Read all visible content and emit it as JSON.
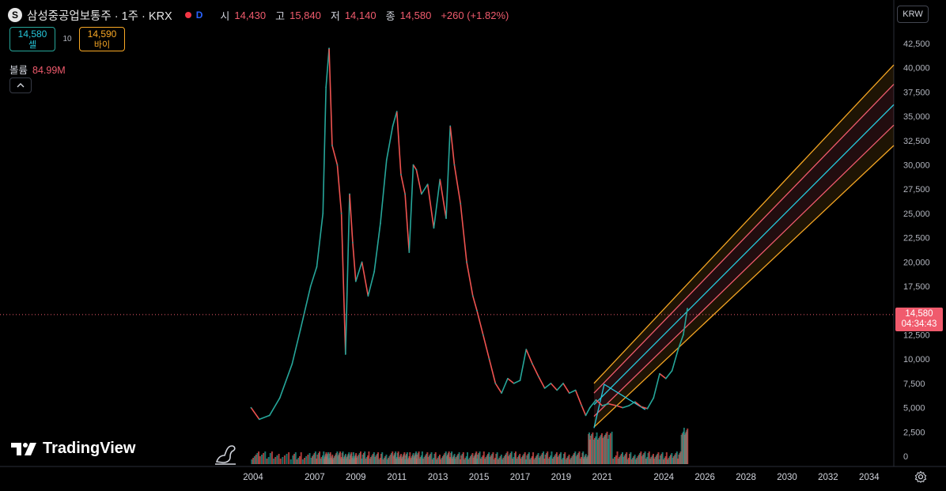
{
  "header": {
    "logo_letter": "S",
    "title": "삼성중공업보통주 · 1주 · KRX",
    "interval_badge": "D",
    "open_label": "시",
    "open_value": "14,430",
    "high_label": "고",
    "high_value": "15,840",
    "low_label": "저",
    "low_value": "14,140",
    "close_label": "종",
    "close_value": "14,580",
    "change": "+260 (+1.82%)"
  },
  "trade": {
    "sell_price": "14,580",
    "sell_label": "셀",
    "spread": "10",
    "buy_price": "14,590",
    "buy_label": "바이"
  },
  "volume": {
    "label": "볼륨",
    "value": "84.99M"
  },
  "collapse_icon": "chevron-up-icon",
  "currency": "KRW",
  "last_price": {
    "value": "14,580",
    "countdown": "04:34:43"
  },
  "watermark": "TradingView",
  "colors": {
    "up": "#26a69a",
    "down": "#ef5350",
    "channel_outer": "#f5a623",
    "channel_mid": "#f05b6d",
    "channel_center": "#26c6da"
  },
  "chart_data": {
    "type": "line",
    "y_ticks": [
      "42,500",
      "40,000",
      "37,500",
      "35,000",
      "32,500",
      "30,000",
      "27,500",
      "25,000",
      "22,500",
      "20,000",
      "17,500",
      "15,000",
      "12,500",
      "10,000",
      "7,500",
      "5,000",
      "2,500",
      "0"
    ],
    "x_ticks": [
      "2004",
      "2007",
      "2009",
      "2011",
      "2013",
      "2015",
      "2017",
      "2019",
      "2021",
      "2024",
      "2026",
      "2028",
      "2030",
      "2032",
      "2034"
    ],
    "ylim": [
      0,
      42500
    ],
    "xlim": [
      2003.5,
      2035.2
    ],
    "series": [
      {
        "x": [
          2003.9,
          2004.3,
          2004.8,
          2005.3,
          2005.9,
          2006.3,
          2006.8,
          2007.1,
          2007.4,
          2007.55,
          2007.7,
          2007.85,
          2008.1,
          2008.3,
          2008.5,
          2008.7,
          2008.85,
          2009.0,
          2009.3,
          2009.6,
          2009.9,
          2010.2,
          2010.5,
          2010.8,
          2011.0,
          2011.2,
          2011.4,
          2011.6,
          2011.8,
          2011.95,
          2012.2,
          2012.5,
          2012.8,
          2013.1,
          2013.4,
          2013.6,
          2013.8,
          2014.1,
          2014.4,
          2014.7,
          2014.9,
          2015.2,
          2015.5,
          2015.8,
          2016.1,
          2016.4,
          2016.7,
          2017.0,
          2017.3,
          2017.6,
          2017.9,
          2018.2,
          2018.5,
          2018.8,
          2019.1,
          2019.4,
          2019.7,
          2020.0,
          2020.2,
          2020.4,
          2020.7,
          2021.0,
          2021.3,
          2021.7,
          2022.0,
          2022.3,
          2022.6,
          2022.9,
          2023.2,
          2023.5,
          2023.8,
          2024.1,
          2024.4,
          2024.7,
          2024.95,
          2025.15
        ],
        "y": [
          5000,
          3800,
          4200,
          6000,
          9500,
          13000,
          17500,
          19500,
          25000,
          38000,
          42000,
          32000,
          30000,
          25000,
          10500,
          27000,
          22000,
          18000,
          20000,
          16500,
          19000,
          24000,
          30500,
          34000,
          35500,
          29000,
          27000,
          21000,
          30000,
          29500,
          27000,
          28000,
          23500,
          28500,
          24500,
          34000,
          30000,
          26000,
          20000,
          16500,
          15000,
          12500,
          10000,
          7500,
          6500,
          8000,
          7500,
          7800,
          11000,
          9500,
          8200,
          7000,
          7500,
          6800,
          7500,
          6500,
          6800,
          5200,
          4200,
          5000,
          5800,
          5200,
          5400,
          5200,
          5000,
          5200,
          5600,
          5100,
          4900,
          6000,
          8500,
          8000,
          8800,
          11000,
          12500,
          15200
        ]
      }
    ],
    "channel_bands": [
      {
        "name": "",
        "start": [
          2020.6,
          7500
        ],
        "end": [
          2035.2,
          40300
        ]
      },
      {
        "name": "",
        "start": [
          2020.6,
          6500
        ],
        "end": [
          2035.2,
          38300
        ]
      },
      {
        "name": "",
        "start": [
          2020.6,
          5300
        ],
        "end": [
          2035.2,
          36200
        ]
      },
      {
        "name": "",
        "start": [
          2020.6,
          4100
        ],
        "end": [
          2035.2,
          34100
        ]
      },
      {
        "name": "",
        "start": [
          2020.6,
          3000
        ],
        "end": [
          2035.2,
          32000
        ]
      }
    ],
    "last_price_line": 14580
  }
}
